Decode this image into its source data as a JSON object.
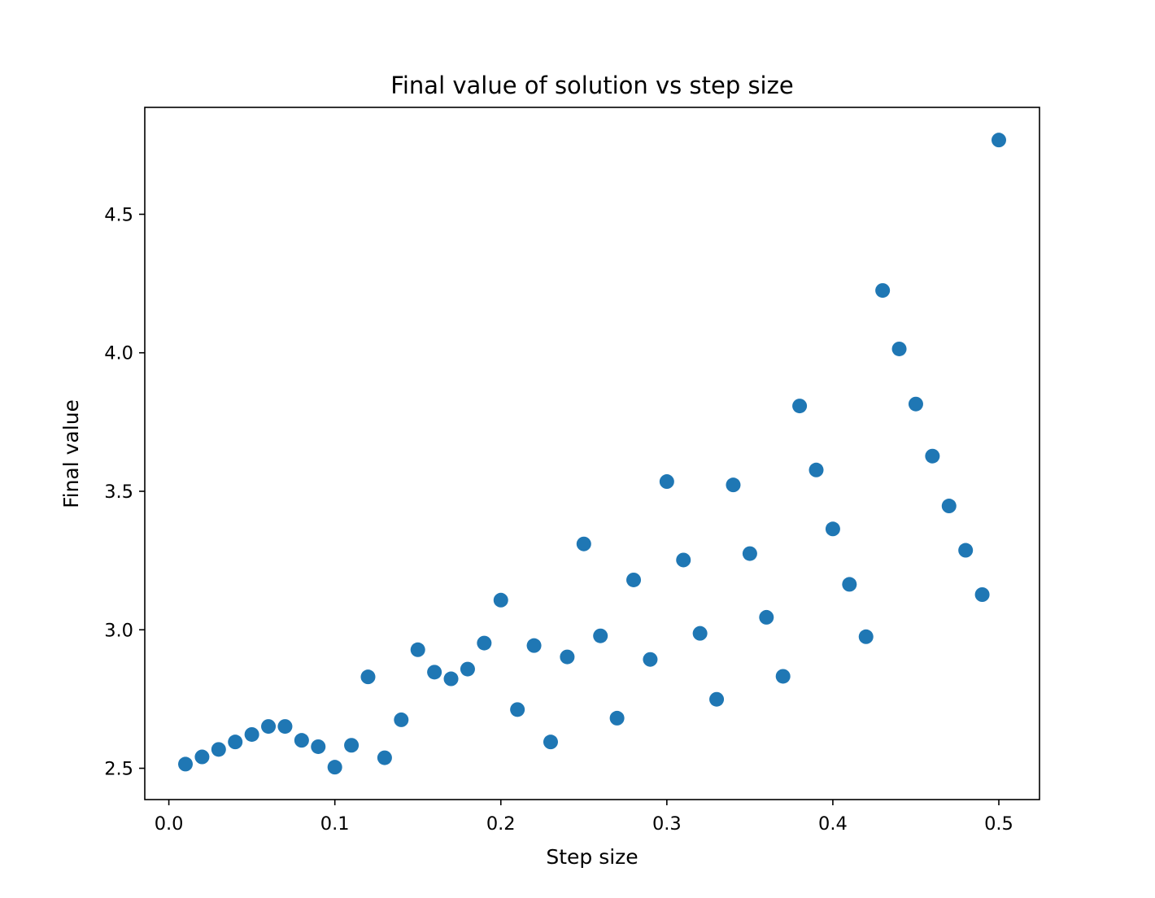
{
  "chart_data": {
    "type": "scatter",
    "title": "Final value of solution vs step size",
    "xlabel": "Step size",
    "ylabel": "Final value",
    "xlim": [
      -0.0145,
      0.5245
    ],
    "ylim": [
      2.387,
      4.886
    ],
    "xticks": [
      0.0,
      0.1,
      0.2,
      0.3,
      0.4,
      0.5
    ],
    "xtick_labels": [
      "0.0",
      "0.1",
      "0.2",
      "0.3",
      "0.4",
      "0.5"
    ],
    "yticks": [
      2.5,
      3.0,
      3.5,
      4.0,
      4.5
    ],
    "ytick_labels": [
      "2.5",
      "3.0",
      "3.5",
      "4.0",
      "4.5"
    ],
    "grid": false,
    "marker_color": "#1f77b4",
    "x": [
      0.01,
      0.02,
      0.03,
      0.04,
      0.05,
      0.06,
      0.07,
      0.08,
      0.09,
      0.1,
      0.11,
      0.12,
      0.13,
      0.14,
      0.15,
      0.16,
      0.17,
      0.18,
      0.19,
      0.2,
      0.21,
      0.22,
      0.23,
      0.24,
      0.25,
      0.26,
      0.27,
      0.28,
      0.29,
      0.3,
      0.31,
      0.32,
      0.33,
      0.34,
      0.35,
      0.36,
      0.37,
      0.38,
      0.39,
      0.4,
      0.41,
      0.42,
      0.43,
      0.44,
      0.45,
      0.46,
      0.47,
      0.48,
      0.49,
      0.5
    ],
    "y": [
      2.515,
      2.541,
      2.568,
      2.595,
      2.622,
      2.651,
      2.651,
      2.601,
      2.578,
      2.504,
      2.583,
      2.83,
      2.538,
      2.675,
      2.928,
      2.847,
      2.823,
      2.858,
      2.952,
      3.107,
      2.712,
      2.943,
      2.595,
      2.902,
      3.31,
      2.978,
      2.681,
      3.18,
      2.893,
      3.535,
      3.252,
      2.987,
      2.749,
      3.523,
      3.275,
      3.045,
      2.832,
      3.808,
      3.577,
      3.364,
      3.164,
      2.975,
      4.225,
      4.014,
      3.815,
      3.627,
      3.447,
      3.287,
      3.127,
      4.768
    ]
  }
}
